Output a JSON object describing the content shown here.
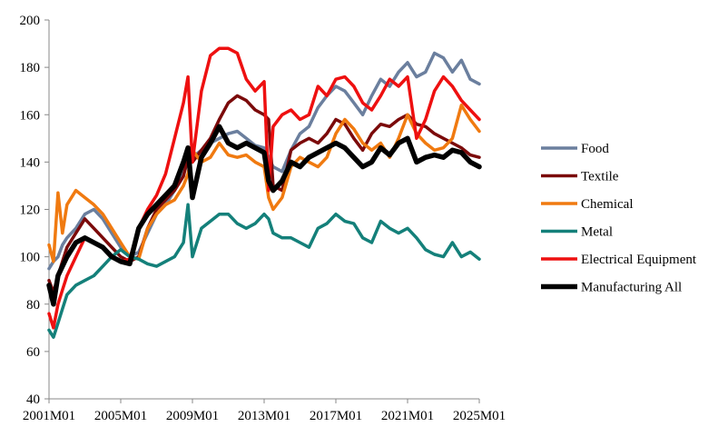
{
  "chart_data": {
    "type": "line",
    "title": "",
    "xlabel": "",
    "ylabel": "",
    "ylim": [
      40,
      200
    ],
    "yticks": [
      40,
      60,
      80,
      100,
      120,
      140,
      160,
      180,
      200
    ],
    "xlim": [
      2001.0,
      2025.0
    ],
    "xticks": [
      {
        "value": 2001.0,
        "label": "2001M01"
      },
      {
        "value": 2005.0,
        "label": "2005M01"
      },
      {
        "value": 2009.0,
        "label": "2009M01"
      },
      {
        "value": 2013.0,
        "label": "2013M01"
      },
      {
        "value": 2017.0,
        "label": "2017M01"
      },
      {
        "value": 2021.0,
        "label": "2021M01"
      },
      {
        "value": 2025.0,
        "label": "2025M01"
      }
    ],
    "grid": false,
    "legend": "right",
    "series": [
      {
        "name": "Food",
        "color": "#6b7f9e",
        "width": 3.5,
        "x": [
          2001.0,
          2001.25,
          2001.5,
          2001.75,
          2002.0,
          2002.5,
          2003.0,
          2003.5,
          2004.0,
          2004.5,
          2005.0,
          2005.5,
          2006.0,
          2006.5,
          2007.0,
          2007.5,
          2008.0,
          2008.5,
          2008.75,
          2009.0,
          2009.5,
          2010.0,
          2010.5,
          2011.0,
          2011.5,
          2012.0,
          2012.5,
          2013.0,
          2013.25,
          2013.5,
          2014.0,
          2014.5,
          2015.0,
          2015.5,
          2016.0,
          2016.5,
          2017.0,
          2017.5,
          2018.0,
          2018.5,
          2019.0,
          2019.5,
          2020.0,
          2020.5,
          2021.0,
          2021.5,
          2022.0,
          2022.5,
          2023.0,
          2023.5,
          2024.0,
          2024.5,
          2025.0
        ],
        "values": [
          95,
          98,
          100,
          105,
          108,
          112,
          118,
          120,
          116,
          110,
          104,
          100,
          102,
          110,
          118,
          122,
          128,
          135,
          140,
          142,
          145,
          148,
          150,
          152,
          153,
          150,
          147,
          146,
          142,
          138,
          136,
          145,
          152,
          155,
          163,
          168,
          172,
          170,
          165,
          160,
          168,
          175,
          172,
          178,
          182,
          176,
          178,
          186,
          184,
          178,
          183,
          175,
          173
        ]
      },
      {
        "name": "Textile",
        "color": "#7b0a0a",
        "width": 3.5,
        "x": [
          2001.0,
          2001.25,
          2001.5,
          2001.75,
          2002.0,
          2002.5,
          2003.0,
          2003.5,
          2004.0,
          2004.5,
          2005.0,
          2005.5,
          2006.0,
          2006.5,
          2007.0,
          2007.5,
          2008.0,
          2008.5,
          2008.75,
          2009.0,
          2009.5,
          2010.0,
          2010.5,
          2011.0,
          2011.5,
          2012.0,
          2012.5,
          2013.0,
          2013.25,
          2013.5,
          2014.0,
          2014.5,
          2015.0,
          2015.5,
          2016.0,
          2016.5,
          2017.0,
          2017.5,
          2018.0,
          2018.5,
          2019.0,
          2019.5,
          2020.0,
          2020.5,
          2021.0,
          2021.5,
          2022.0,
          2022.5,
          2023.0,
          2023.5,
          2024.0,
          2024.5,
          2025.0
        ],
        "values": [
          90,
          85,
          92,
          98,
          104,
          110,
          116,
          112,
          108,
          104,
          100,
          98,
          100,
          112,
          120,
          124,
          128,
          134,
          142,
          140,
          145,
          150,
          158,
          165,
          168,
          166,
          162,
          160,
          158,
          130,
          128,
          145,
          148,
          150,
          148,
          152,
          158,
          156,
          150,
          145,
          152,
          156,
          155,
          158,
          160,
          156,
          155,
          152,
          150,
          148,
          146,
          143,
          142
        ]
      },
      {
        "name": "Chemical",
        "color": "#f07a10",
        "width": 3.5,
        "x": [
          2001.0,
          2001.25,
          2001.5,
          2001.75,
          2002.0,
          2002.5,
          2003.0,
          2003.5,
          2004.0,
          2004.5,
          2005.0,
          2005.5,
          2006.0,
          2006.5,
          2007.0,
          2007.5,
          2008.0,
          2008.5,
          2008.75,
          2009.0,
          2009.5,
          2010.0,
          2010.5,
          2011.0,
          2011.5,
          2012.0,
          2012.5,
          2013.0,
          2013.25,
          2013.5,
          2014.0,
          2014.5,
          2015.0,
          2015.5,
          2016.0,
          2016.5,
          2017.0,
          2017.5,
          2018.0,
          2018.5,
          2019.0,
          2019.5,
          2020.0,
          2020.5,
          2021.0,
          2021.5,
          2022.0,
          2022.5,
          2023.0,
          2023.5,
          2024.0,
          2024.5,
          2025.0
        ],
        "values": [
          105,
          98,
          127,
          110,
          122,
          128,
          125,
          122,
          118,
          112,
          106,
          100,
          99,
          112,
          118,
          122,
          124,
          130,
          135,
          145,
          140,
          142,
          148,
          143,
          142,
          143,
          140,
          138,
          125,
          120,
          125,
          138,
          142,
          140,
          138,
          142,
          152,
          158,
          154,
          148,
          145,
          148,
          142,
          150,
          160,
          152,
          148,
          145,
          146,
          150,
          164,
          158,
          153
        ]
      },
      {
        "name": "Metal",
        "color": "#14807a",
        "width": 3.5,
        "x": [
          2001.0,
          2001.25,
          2001.5,
          2001.75,
          2002.0,
          2002.5,
          2003.0,
          2003.5,
          2004.0,
          2004.5,
          2005.0,
          2005.5,
          2006.0,
          2006.5,
          2007.0,
          2007.5,
          2008.0,
          2008.5,
          2008.75,
          2009.0,
          2009.5,
          2010.0,
          2010.5,
          2011.0,
          2011.5,
          2012.0,
          2012.5,
          2013.0,
          2013.25,
          2013.5,
          2014.0,
          2014.5,
          2015.0,
          2015.5,
          2016.0,
          2016.5,
          2017.0,
          2017.5,
          2018.0,
          2018.5,
          2019.0,
          2019.5,
          2020.0,
          2020.5,
          2021.0,
          2021.5,
          2022.0,
          2022.5,
          2023.0,
          2023.5,
          2024.0,
          2024.5,
          2025.0
        ],
        "values": [
          69,
          66,
          72,
          78,
          84,
          88,
          90,
          92,
          96,
          100,
          103,
          100,
          99,
          97,
          96,
          98,
          100,
          106,
          122,
          100,
          112,
          115,
          118,
          118,
          114,
          112,
          114,
          118,
          116,
          110,
          108,
          108,
          106,
          104,
          112,
          114,
          118,
          115,
          114,
          108,
          106,
          115,
          112,
          110,
          112,
          108,
          103,
          101,
          100,
          106,
          100,
          102,
          99
        ]
      },
      {
        "name": "Electrical Equipment",
        "color": "#ee1010",
        "width": 3.5,
        "x": [
          2001.0,
          2001.25,
          2001.5,
          2001.75,
          2002.0,
          2002.5,
          2003.0,
          2003.5,
          2004.0,
          2004.5,
          2005.0,
          2005.5,
          2006.0,
          2006.5,
          2007.0,
          2007.5,
          2008.0,
          2008.5,
          2008.75,
          2009.0,
          2009.5,
          2010.0,
          2010.5,
          2011.0,
          2011.5,
          2012.0,
          2012.5,
          2013.0,
          2013.25,
          2013.5,
          2014.0,
          2014.5,
          2015.0,
          2015.5,
          2016.0,
          2016.5,
          2017.0,
          2017.5,
          2018.0,
          2018.5,
          2019.0,
          2019.5,
          2020.0,
          2020.5,
          2021.0,
          2021.5,
          2022.0,
          2022.5,
          2023.0,
          2023.5,
          2024.0,
          2024.5,
          2025.0
        ],
        "values": [
          76,
          70,
          80,
          86,
          92,
          100,
          108,
          106,
          104,
          100,
          98,
          99,
          112,
          120,
          126,
          135,
          150,
          165,
          176,
          140,
          170,
          185,
          188,
          188,
          186,
          175,
          170,
          174,
          128,
          155,
          160,
          162,
          158,
          160,
          172,
          168,
          175,
          176,
          172,
          165,
          162,
          168,
          175,
          172,
          176,
          150,
          158,
          170,
          176,
          172,
          166,
          162,
          158
        ]
      },
      {
        "name": "Manufacturing All",
        "color": "#000000",
        "width": 5.5,
        "x": [
          2001.0,
          2001.25,
          2001.5,
          2001.75,
          2002.0,
          2002.5,
          2003.0,
          2003.5,
          2004.0,
          2004.5,
          2005.0,
          2005.5,
          2006.0,
          2006.5,
          2007.0,
          2007.5,
          2008.0,
          2008.5,
          2008.75,
          2009.0,
          2009.5,
          2010.0,
          2010.5,
          2011.0,
          2011.5,
          2012.0,
          2012.5,
          2013.0,
          2013.25,
          2013.5,
          2014.0,
          2014.5,
          2015.0,
          2015.5,
          2016.0,
          2016.5,
          2017.0,
          2017.5,
          2018.0,
          2018.5,
          2019.0,
          2019.5,
          2020.0,
          2020.5,
          2021.0,
          2021.5,
          2022.0,
          2022.5,
          2023.0,
          2023.5,
          2024.0,
          2024.5,
          2025.0
        ],
        "values": [
          88,
          80,
          92,
          96,
          100,
          106,
          108,
          106,
          104,
          100,
          98,
          97,
          112,
          118,
          122,
          126,
          130,
          140,
          146,
          125,
          142,
          148,
          155,
          148,
          146,
          148,
          146,
          144,
          132,
          128,
          132,
          140,
          138,
          142,
          144,
          146,
          148,
          146,
          142,
          138,
          140,
          146,
          143,
          148,
          150,
          140,
          142,
          143,
          142,
          145,
          144,
          140,
          138
        ]
      }
    ]
  }
}
